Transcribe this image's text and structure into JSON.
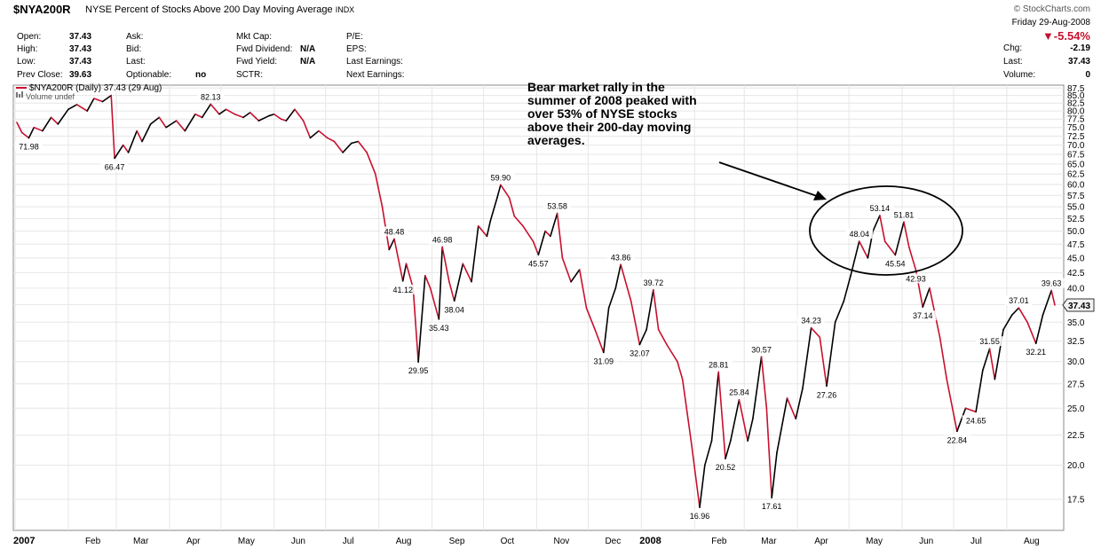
{
  "header": {
    "symbol": "$NYA200R",
    "description": "NYSE Percent of Stocks Above 200 Day Moving Average",
    "exchange": "INDX",
    "brand": "© StockCharts.com",
    "date_line": "Friday  29-Aug-2008",
    "change_pct": "▼-5.54%"
  },
  "quote_fields": [
    {
      "label": "Open:",
      "value": "37.43"
    },
    {
      "label": "High:",
      "value": "37.43"
    },
    {
      "label": "Low:",
      "value": "37.43"
    },
    {
      "label": "Prev Close:",
      "value": "39.63"
    },
    {
      "label": "Ask:",
      "value": ""
    },
    {
      "label": "Bid:",
      "value": ""
    },
    {
      "label": "Last:",
      "value": ""
    },
    {
      "label": "Optionable:",
      "value": "no"
    },
    {
      "label": "Mkt Cap:",
      "value": ""
    },
    {
      "label": "Fwd Dividend:",
      "value": "N/A"
    },
    {
      "label": "Fwd Yield:",
      "value": "N/A"
    },
    {
      "label": "SCTR:",
      "value": ""
    },
    {
      "label": "P/E:",
      "value": ""
    },
    {
      "label": "EPS:",
      "value": ""
    },
    {
      "label": "Last Earnings:",
      "value": ""
    },
    {
      "label": "Next Earnings:",
      "value": ""
    },
    {
      "label": "Chg:",
      "value": "-2.19"
    },
    {
      "label": "Last:",
      "value": "37.43"
    },
    {
      "label": "Volume:",
      "value": "0"
    }
  ],
  "annotation": "Bear market rally in the\nsummer of 2008 peaked with\nover 53% of NYSE stocks\nabove their 200-day moving\naverages.",
  "colors": {
    "up": "#000000",
    "down": "#c8102e",
    "grid": "#e6e6e6",
    "frame": "#888888",
    "background": "#ffffff",
    "last_tag": "#f2f2f2"
  },
  "chart_data": {
    "type": "line",
    "legend": {
      "series_label": "$NYA200R (Daily) 37.43 (29 Aug)",
      "volume_label": "Volume undef",
      "placement": "top-left"
    },
    "x_labels": [
      "2007",
      "Feb",
      "Mar",
      "Apr",
      "May",
      "Jun",
      "Jul",
      "Aug",
      "Sep",
      "Oct",
      "Nov",
      "Dec",
      "2008",
      "Feb",
      "Mar",
      "Apr",
      "May",
      "Jun",
      "Jul",
      "Aug"
    ],
    "y_ticks": [
      "87.5",
      "85.0",
      "82.5",
      "80.0",
      "77.5",
      "75.0",
      "72.5",
      "70.0",
      "67.5",
      "65.0",
      "62.5",
      "60.0",
      "57.5",
      "55.0",
      "52.5",
      "50.0",
      "47.5",
      "45.0",
      "42.5",
      "40.0",
      "37.5",
      "35.0",
      "32.5",
      "30.0",
      "27.5",
      "25.0",
      "22.5",
      "20.0",
      "17.5"
    ],
    "y_scale": "log",
    "y_range": [
      15.5,
      88.5
    ],
    "x_range": [
      "2007-01-01",
      "2008-08-29"
    ],
    "last_value": "37.43",
    "series": [
      {
        "values": [
          [
            "2007-01-02",
            76.5
          ],
          [
            "2007-01-05",
            73.5
          ],
          [
            "2007-01-09",
            71.98
          ],
          [
            "2007-01-12",
            75.0
          ],
          [
            "2007-01-17",
            74.0
          ],
          [
            "2007-01-22",
            78.0
          ],
          [
            "2007-01-26",
            76.0
          ],
          [
            "2007-02-01",
            80.5
          ],
          [
            "2007-02-06",
            82.0
          ],
          [
            "2007-02-12",
            80.0
          ],
          [
            "2007-02-16",
            84.0
          ],
          [
            "2007-02-21",
            83.0
          ],
          [
            "2007-02-26",
            85.0
          ],
          [
            "2007-02-28",
            66.47
          ],
          [
            "2007-03-05",
            70.0
          ],
          [
            "2007-03-08",
            68.0
          ],
          [
            "2007-03-13",
            74.0
          ],
          [
            "2007-03-16",
            71.0
          ],
          [
            "2007-03-21",
            76.0
          ],
          [
            "2007-03-26",
            78.0
          ],
          [
            "2007-03-30",
            75.0
          ],
          [
            "2007-04-05",
            77.0
          ],
          [
            "2007-04-10",
            74.0
          ],
          [
            "2007-04-16",
            79.0
          ],
          [
            "2007-04-20",
            78.0
          ],
          [
            "2007-04-25",
            82.13
          ],
          [
            "2007-04-30",
            79.0
          ],
          [
            "2007-05-04",
            80.5
          ],
          [
            "2007-05-09",
            79.0
          ],
          [
            "2007-05-14",
            78.0
          ],
          [
            "2007-05-18",
            79.5
          ],
          [
            "2007-05-23",
            77.0
          ],
          [
            "2007-05-29",
            78.5
          ],
          [
            "2007-06-01",
            79.0
          ],
          [
            "2007-06-05",
            77.5
          ],
          [
            "2007-06-08",
            77.0
          ],
          [
            "2007-06-13",
            80.5
          ],
          [
            "2007-06-18",
            77.0
          ],
          [
            "2007-06-22",
            72.0
          ],
          [
            "2007-06-27",
            74.0
          ],
          [
            "2007-07-02",
            72.0
          ],
          [
            "2007-07-06",
            71.0
          ],
          [
            "2007-07-11",
            68.0
          ],
          [
            "2007-07-16",
            70.5
          ],
          [
            "2007-07-20",
            71.0
          ],
          [
            "2007-07-25",
            68.0
          ],
          [
            "2007-07-30",
            62.5
          ],
          [
            "2007-08-03",
            55.0
          ],
          [
            "2007-08-07",
            46.5
          ],
          [
            "2007-08-10",
            48.48
          ],
          [
            "2007-08-15",
            41.12
          ],
          [
            "2007-08-17",
            44.0
          ],
          [
            "2007-08-21",
            40.0
          ],
          [
            "2007-08-24",
            29.95
          ],
          [
            "2007-08-28",
            42.0
          ],
          [
            "2007-08-31",
            40.0
          ],
          [
            "2007-09-05",
            35.43
          ],
          [
            "2007-09-07",
            46.98
          ],
          [
            "2007-09-11",
            41.0
          ],
          [
            "2007-09-14",
            38.04
          ],
          [
            "2007-09-19",
            44.0
          ],
          [
            "2007-09-24",
            41.0
          ],
          [
            "2007-09-28",
            51.0
          ],
          [
            "2007-10-03",
            49.0
          ],
          [
            "2007-10-05",
            52.0
          ],
          [
            "2007-10-09",
            57.0
          ],
          [
            "2007-10-11",
            59.9
          ],
          [
            "2007-10-16",
            57.0
          ],
          [
            "2007-10-19",
            53.0
          ],
          [
            "2007-10-24",
            51.0
          ],
          [
            "2007-10-30",
            48.0
          ],
          [
            "2007-11-02",
            45.57
          ],
          [
            "2007-11-06",
            50.0
          ],
          [
            "2007-11-09",
            49.0
          ],
          [
            "2007-11-13",
            53.58
          ],
          [
            "2007-11-16",
            45.0
          ],
          [
            "2007-11-21",
            41.0
          ],
          [
            "2007-11-26",
            43.0
          ],
          [
            "2007-11-30",
            37.0
          ],
          [
            "2007-12-05",
            34.0
          ],
          [
            "2007-12-10",
            31.09
          ],
          [
            "2007-12-13",
            37.0
          ],
          [
            "2007-12-17",
            40.0
          ],
          [
            "2007-12-20",
            43.86
          ],
          [
            "2007-12-26",
            38.0
          ],
          [
            "2007-12-31",
            32.07
          ],
          [
            "2008-01-04",
            34.0
          ],
          [
            "2008-01-08",
            39.72
          ],
          [
            "2008-01-11",
            34.0
          ],
          [
            "2008-01-16",
            32.0
          ],
          [
            "2008-01-22",
            30.0
          ],
          [
            "2008-01-25",
            28.0
          ],
          [
            "2008-01-30",
            22.0
          ],
          [
            "2008-02-04",
            16.96
          ],
          [
            "2008-02-07",
            20.0
          ],
          [
            "2008-02-11",
            22.0
          ],
          [
            "2008-02-15",
            28.81
          ],
          [
            "2008-02-19",
            20.52
          ],
          [
            "2008-02-22",
            22.0
          ],
          [
            "2008-02-27",
            25.84
          ],
          [
            "2008-03-03",
            22.0
          ],
          [
            "2008-03-06",
            24.0
          ],
          [
            "2008-03-11",
            30.57
          ],
          [
            "2008-03-14",
            25.0
          ],
          [
            "2008-03-17",
            17.61
          ],
          [
            "2008-03-20",
            21.0
          ],
          [
            "2008-03-26",
            26.0
          ],
          [
            "2008-03-31",
            24.0
          ],
          [
            "2008-04-04",
            27.0
          ],
          [
            "2008-04-09",
            34.23
          ],
          [
            "2008-04-14",
            33.0
          ],
          [
            "2008-04-18",
            27.26
          ],
          [
            "2008-04-23",
            35.0
          ],
          [
            "2008-04-28",
            38.0
          ],
          [
            "2008-05-02",
            42.0
          ],
          [
            "2008-05-07",
            48.04
          ],
          [
            "2008-05-12",
            45.0
          ],
          [
            "2008-05-15",
            50.0
          ],
          [
            "2008-05-19",
            53.14
          ],
          [
            "2008-05-22",
            48.0
          ],
          [
            "2008-05-28",
            45.54
          ],
          [
            "2008-06-02",
            51.81
          ],
          [
            "2008-06-05",
            47.0
          ],
          [
            "2008-06-09",
            42.93
          ],
          [
            "2008-06-13",
            37.14
          ],
          [
            "2008-06-17",
            40.0
          ],
          [
            "2008-06-23",
            33.0
          ],
          [
            "2008-06-27",
            28.0
          ],
          [
            "2008-07-03",
            22.84
          ],
          [
            "2008-07-08",
            25.0
          ],
          [
            "2008-07-14",
            24.65
          ],
          [
            "2008-07-18",
            29.0
          ],
          [
            "2008-07-22",
            31.55
          ],
          [
            "2008-07-25",
            28.0
          ],
          [
            "2008-07-30",
            34.0
          ],
          [
            "2008-08-04",
            36.0
          ],
          [
            "2008-08-08",
            37.01
          ],
          [
            "2008-08-13",
            35.0
          ],
          [
            "2008-08-18",
            32.21
          ],
          [
            "2008-08-22",
            36.0
          ],
          [
            "2008-08-27",
            39.63
          ],
          [
            "2008-08-29",
            37.43
          ]
        ]
      }
    ],
    "point_labels": [
      "71.98",
      "66.47",
      "82.13",
      "48.48",
      "41.12",
      "29.95",
      "35.43",
      "46.98",
      "38.04",
      "59.90",
      "53.58",
      "45.57",
      "43.86",
      "31.09",
      "32.07",
      "39.72",
      "16.96",
      "28.81",
      "20.52",
      "25.84",
      "30.57",
      "17.61",
      "34.23",
      "27.26",
      "48.04",
      "53.14",
      "45.54",
      "51.81",
      "42.93",
      "37.14",
      "22.84",
      "24.65",
      "31.55",
      "37.01",
      "32.21",
      "39.63"
    ]
  }
}
